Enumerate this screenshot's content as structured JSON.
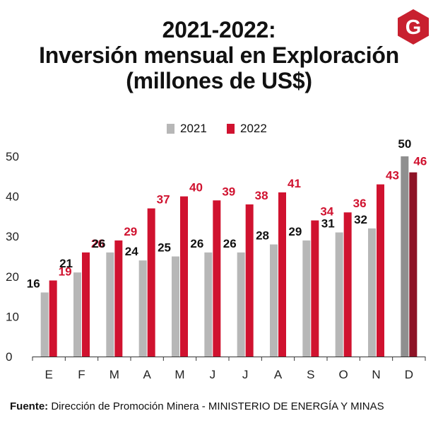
{
  "title": {
    "line1": "2021-2022:",
    "line2": "Inversión mensual en Exploración",
    "line3": "(millones de US$)"
  },
  "logo": {
    "letter": "G",
    "color": "#c8202f",
    "icon": "gestion-logo-icon"
  },
  "legend": [
    {
      "label": "2021",
      "color": "#b7b7b7"
    },
    {
      "label": "2022",
      "color": "#d0122f"
    }
  ],
  "source": {
    "label": "Fuente:",
    "text": " Dirección de Promoción Minera - MINISTERIO DE ENERGÍA Y MINAS"
  },
  "chart_data": {
    "type": "bar",
    "categories": [
      "E",
      "F",
      "M",
      "A",
      "M",
      "J",
      "J",
      "A",
      "S",
      "O",
      "N",
      "D"
    ],
    "series": [
      {
        "name": "2021",
        "color": "#b7b7b7",
        "highlight_color": "#8f8f8f",
        "label_color": "#111111",
        "values": [
          16,
          21,
          26,
          24,
          25,
          26,
          26,
          28,
          29,
          31,
          32,
          50
        ]
      },
      {
        "name": "2022",
        "color": "#d0122f",
        "highlight_color": "#8e1326",
        "label_color": "#d0122f",
        "values": [
          19,
          26,
          29,
          37,
          40,
          39,
          38,
          41,
          34,
          36,
          43,
          46
        ]
      }
    ],
    "highlight_category_index": 11,
    "ylim": [
      0,
      50
    ],
    "yticks": [
      0,
      10,
      20,
      30,
      40,
      50
    ],
    "grid": false
  }
}
